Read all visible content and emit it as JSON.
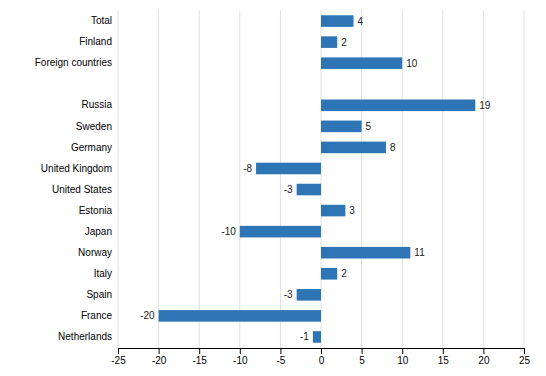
{
  "chart_data": {
    "type": "bar",
    "orientation": "horizontal",
    "categories": [
      "Total",
      "Finland",
      "Foreign countries",
      null,
      "Russia",
      "Sweden",
      "Germany",
      "United Kingdom",
      "United States",
      "Estonia",
      "Japan",
      "Norway",
      "Italy",
      "Spain",
      "France",
      "Netherlands"
    ],
    "values": [
      4,
      2,
      10,
      null,
      19,
      5,
      8,
      -8,
      -3,
      3,
      -10,
      11,
      2,
      -3,
      -20,
      -1
    ],
    "color": "#2E75B6",
    "xlim": [
      -25,
      25
    ],
    "xticks": [
      -25,
      -20,
      -15,
      -10,
      -5,
      0,
      5,
      10,
      15,
      20,
      25
    ],
    "grid": true,
    "data_labels": true
  }
}
